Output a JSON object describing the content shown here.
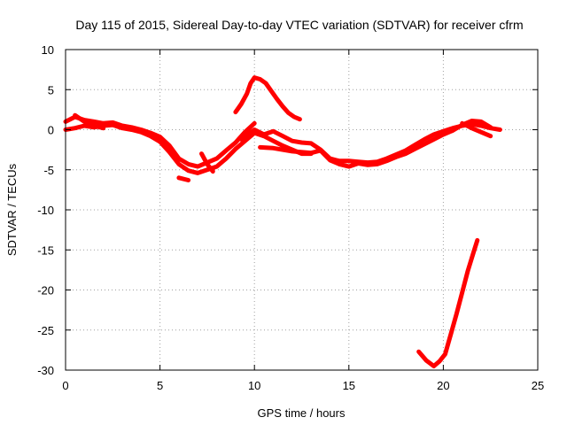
{
  "chart_data": {
    "type": "line",
    "title": "Day 115 of 2015, Sidereal Day-to-day VTEC variation (SDTVAR) for receiver cfrm",
    "xlabel": "GPS time / hours",
    "ylabel": "SDTVAR / TECUs",
    "xlim": [
      0,
      25
    ],
    "ylim": [
      -30,
      10
    ],
    "xticks": [
      0,
      5,
      10,
      15,
      20,
      25
    ],
    "yticks": [
      -30,
      -25,
      -20,
      -15,
      -10,
      -5,
      0,
      5,
      10
    ],
    "grid": true,
    "series_color": "#ff0000",
    "series": [
      {
        "name": "trace-1",
        "points": [
          [
            0,
            1
          ],
          [
            0.5,
            1.6
          ],
          [
            1,
            1.2
          ],
          [
            1.5,
            1.0
          ],
          [
            2,
            0.8
          ],
          [
            2.5,
            0.9
          ],
          [
            3,
            0.5
          ],
          [
            3.5,
            0.3
          ],
          [
            4,
            0
          ],
          [
            4.5,
            -0.4
          ],
          [
            5,
            -0.9
          ],
          [
            5.5,
            -2
          ],
          [
            6,
            -3.6
          ],
          [
            6.5,
            -4.3
          ],
          [
            7,
            -4.6
          ],
          [
            7.5,
            -4.1
          ],
          [
            8,
            -3.6
          ],
          [
            8.5,
            -2.6
          ],
          [
            9,
            -1.6
          ],
          [
            9.5,
            -0.3
          ],
          [
            10,
            0.8
          ]
        ]
      },
      {
        "name": "trace-2",
        "points": [
          [
            0,
            0
          ],
          [
            0.5,
            0.2
          ],
          [
            1,
            0.5
          ],
          [
            1.5,
            0.3
          ],
          [
            2,
            0.5
          ],
          [
            2.5,
            0.6
          ],
          [
            3,
            0.2
          ],
          [
            3.5,
            0.0
          ],
          [
            4,
            -0.3
          ],
          [
            4.5,
            -0.8
          ],
          [
            5,
            -1.5
          ],
          [
            5.5,
            -2.8
          ],
          [
            6,
            -4.3
          ],
          [
            6.5,
            -5.1
          ],
          [
            7,
            -5.4
          ],
          [
            7.5,
            -5.0
          ],
          [
            8,
            -4.6
          ],
          [
            8.5,
            -3.6
          ],
          [
            9,
            -2.4
          ],
          [
            9.5,
            -1.4
          ],
          [
            10,
            -0.4
          ],
          [
            10.5,
            -0.8
          ],
          [
            11,
            -1.4
          ],
          [
            11.5,
            -2.0
          ],
          [
            12,
            -2.5
          ],
          [
            12.5,
            -3.0
          ],
          [
            13,
            -3.0
          ]
        ]
      },
      {
        "name": "trace-3",
        "points": [
          [
            0.5,
            1.8
          ],
          [
            1,
            1.0
          ],
          [
            1.5,
            0.5
          ],
          [
            2,
            0.2
          ]
        ]
      },
      {
        "name": "trace-4",
        "points": [
          [
            6,
            -6
          ],
          [
            6.5,
            -6.3
          ]
        ]
      },
      {
        "name": "trace-5",
        "points": [
          [
            7.2,
            -3
          ],
          [
            7.5,
            -4.3
          ],
          [
            7.8,
            -5.2
          ]
        ]
      },
      {
        "name": "trace-6",
        "points": [
          [
            9,
            2.2
          ],
          [
            9.3,
            3.2
          ],
          [
            9.6,
            4.5
          ],
          [
            9.8,
            5.8
          ],
          [
            10,
            6.5
          ],
          [
            10.3,
            6.3
          ],
          [
            10.6,
            5.8
          ],
          [
            10.9,
            4.8
          ],
          [
            11.2,
            3.8
          ],
          [
            11.5,
            2.9
          ],
          [
            11.8,
            2.1
          ],
          [
            12.1,
            1.6
          ],
          [
            12.4,
            1.3
          ]
        ]
      },
      {
        "name": "trace-7",
        "points": [
          [
            9.3,
            -1.2
          ],
          [
            9.7,
            -0.5
          ],
          [
            10,
            0
          ],
          [
            10.5,
            -0.6
          ],
          [
            11,
            -0.2
          ],
          [
            11.5,
            -0.8
          ],
          [
            12,
            -1.4
          ],
          [
            12.5,
            -1.6
          ],
          [
            13,
            -1.7
          ],
          [
            13.5,
            -2.5
          ],
          [
            14,
            -3.6
          ],
          [
            14.5,
            -3.9
          ],
          [
            15,
            -3.9
          ],
          [
            15.5,
            -4.0
          ],
          [
            16,
            -4.1
          ],
          [
            16.5,
            -4.0
          ],
          [
            17,
            -3.6
          ],
          [
            17.5,
            -3.1
          ],
          [
            18,
            -2.6
          ],
          [
            18.5,
            -1.9
          ],
          [
            19,
            -1.2
          ],
          [
            19.5,
            -0.6
          ],
          [
            20,
            -0.2
          ],
          [
            20.5,
            0.2
          ],
          [
            21,
            0.5
          ],
          [
            21.5,
            0.7
          ],
          [
            22,
            0.5
          ],
          [
            22.5,
            0.2
          ],
          [
            23,
            0
          ]
        ]
      },
      {
        "name": "trace-8",
        "points": [
          [
            10.3,
            -2.2
          ],
          [
            11,
            -2.3
          ],
          [
            12,
            -2.7
          ],
          [
            13,
            -2.9
          ],
          [
            13.5,
            -2.6
          ],
          [
            14,
            -3.8
          ],
          [
            14.5,
            -4.3
          ],
          [
            15,
            -4.6
          ],
          [
            15.5,
            -4.2
          ],
          [
            16,
            -4.4
          ],
          [
            16.5,
            -4.3
          ],
          [
            17,
            -3.9
          ],
          [
            17.5,
            -3.4
          ],
          [
            18,
            -3.0
          ],
          [
            18.5,
            -2.4
          ],
          [
            19,
            -1.8
          ],
          [
            19.5,
            -1.2
          ],
          [
            20,
            -0.6
          ],
          [
            20.5,
            -0.1
          ],
          [
            21,
            0.6
          ],
          [
            21.5,
            1.1
          ],
          [
            22,
            1.0
          ],
          [
            22.5,
            0.3
          ]
        ]
      },
      {
        "name": "trace-9",
        "points": [
          [
            21,
            0.8
          ],
          [
            21.5,
            0.2
          ],
          [
            22,
            -0.3
          ],
          [
            22.5,
            -0.8
          ]
        ]
      },
      {
        "name": "trace-10",
        "points": [
          [
            18.7,
            -27.7
          ],
          [
            19.1,
            -28.8
          ],
          [
            19.5,
            -29.5
          ],
          [
            19.8,
            -28.9
          ],
          [
            20.1,
            -28.0
          ],
          [
            20.4,
            -25.5
          ],
          [
            20.7,
            -23.0
          ],
          [
            21,
            -20.3
          ],
          [
            21.3,
            -17.6
          ],
          [
            21.6,
            -15.3
          ],
          [
            21.8,
            -13.8
          ]
        ]
      }
    ]
  }
}
